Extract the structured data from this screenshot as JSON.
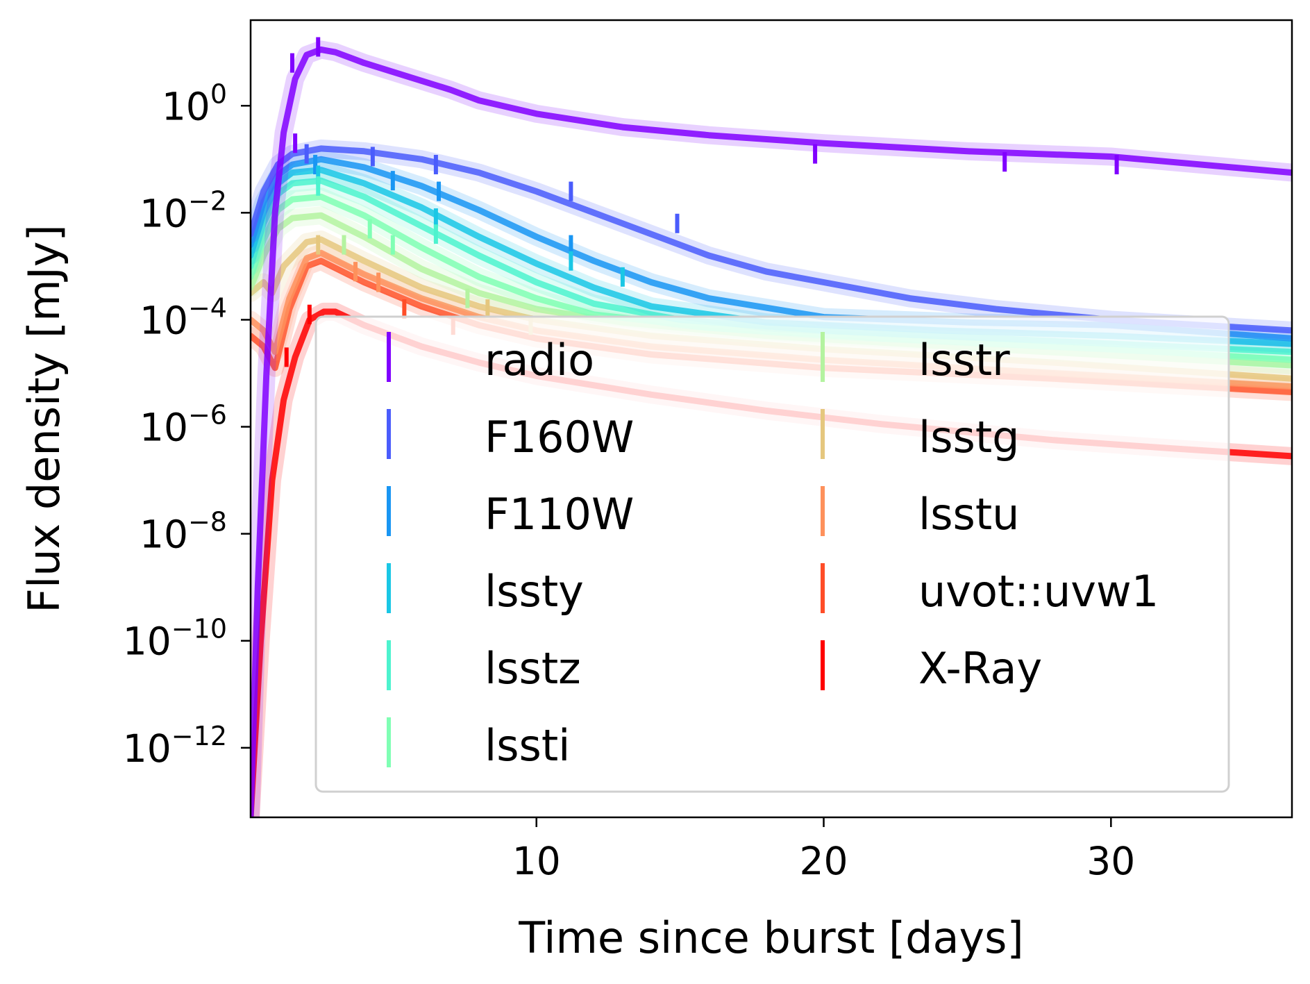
{
  "chart_data": {
    "type": "line",
    "xlabel": "Time since burst [days]",
    "ylabel": "Flux density [mJy]",
    "xlim": [
      0.05,
      36.3
    ],
    "ylim_log10": [
      -13.3,
      1.6
    ],
    "yscale": "log",
    "x_ticks": [
      10,
      20,
      30
    ],
    "x_tick_labels": [
      "10",
      "20",
      "30"
    ],
    "y_ticks_log10": [
      0,
      -2,
      -4,
      -6,
      -8,
      -10,
      -12
    ],
    "y_tick_labels": [
      {
        "base": "10",
        "exp": "0"
      },
      {
        "base": "10",
        "exp": "−2"
      },
      {
        "base": "10",
        "exp": "−4"
      },
      {
        "base": "10",
        "exp": "−6"
      },
      {
        "base": "10",
        "exp": "−8"
      },
      {
        "base": "10",
        "exp": "−10"
      },
      {
        "base": "10",
        "exp": "−12"
      }
    ],
    "legend": {
      "placement": "lower-right",
      "columns": 2
    },
    "series": [
      {
        "name": "radio",
        "color": "#8000ff",
        "model": [
          [
            0.05,
            -13.3
          ],
          [
            0.3,
            -9
          ],
          [
            0.6,
            -5
          ],
          [
            0.9,
            -2
          ],
          [
            1.2,
            -0.5
          ],
          [
            1.6,
            0.5
          ],
          [
            2.0,
            0.95
          ],
          [
            2.5,
            1.05
          ],
          [
            3,
            1.0
          ],
          [
            4,
            0.8
          ],
          [
            5.5,
            0.55
          ],
          [
            7,
            0.3
          ],
          [
            8,
            0.1
          ],
          [
            10,
            -0.15
          ],
          [
            13,
            -0.4
          ],
          [
            16,
            -0.55
          ],
          [
            20,
            -0.7
          ],
          [
            25,
            -0.85
          ],
          [
            30,
            -0.95
          ],
          [
            36.3,
            -1.25
          ]
        ],
        "points": [
          [
            1.5,
            0.8
          ],
          [
            2.4,
            1.1
          ],
          [
            1.6,
            -0.7
          ],
          [
            19.7,
            -0.9
          ],
          [
            26.3,
            -1.05
          ],
          [
            30.2,
            -1.1
          ]
        ]
      },
      {
        "name": "F160W",
        "color": "#4a5cfc",
        "model": [
          [
            0.05,
            -2.4
          ],
          [
            0.5,
            -1.6
          ],
          [
            1,
            -1.1
          ],
          [
            1.5,
            -0.9
          ],
          [
            2.5,
            -0.8
          ],
          [
            4,
            -0.85
          ],
          [
            6,
            -1.0
          ],
          [
            8,
            -1.25
          ],
          [
            10,
            -1.6
          ],
          [
            12,
            -2.0
          ],
          [
            14,
            -2.4
          ],
          [
            16,
            -2.8
          ],
          [
            18,
            -3.1
          ],
          [
            20,
            -3.3
          ],
          [
            23,
            -3.6
          ],
          [
            26,
            -3.8
          ],
          [
            30,
            -4.0
          ],
          [
            36.3,
            -4.2
          ]
        ],
        "points": [
          [
            2.0,
            -0.9
          ],
          [
            4.3,
            -0.95
          ],
          [
            6.5,
            -1.1
          ],
          [
            11.2,
            -1.6
          ],
          [
            14.9,
            -2.2
          ]
        ]
      },
      {
        "name": "F110W",
        "color": "#1996f3",
        "model": [
          [
            0.05,
            -2.6
          ],
          [
            0.5,
            -1.8
          ],
          [
            1,
            -1.3
          ],
          [
            1.5,
            -1.1
          ],
          [
            2.5,
            -1.0
          ],
          [
            4,
            -1.15
          ],
          [
            6,
            -1.5
          ],
          [
            8,
            -1.95
          ],
          [
            10,
            -2.45
          ],
          [
            12,
            -2.9
          ],
          [
            14,
            -3.3
          ],
          [
            16,
            -3.6
          ],
          [
            20,
            -3.95
          ],
          [
            25,
            -4.05
          ],
          [
            30,
            -4.1
          ],
          [
            36.3,
            -4.35
          ]
        ],
        "points": [
          [
            2.3,
            -1.1
          ],
          [
            5,
            -1.4
          ],
          [
            6.6,
            -1.6
          ],
          [
            11.2,
            -2.6
          ]
        ]
      },
      {
        "name": "lssty",
        "color": "#1ac7e5",
        "model": [
          [
            0.05,
            -2.8
          ],
          [
            0.5,
            -2.0
          ],
          [
            1,
            -1.45
          ],
          [
            1.5,
            -1.25
          ],
          [
            2.5,
            -1.2
          ],
          [
            4,
            -1.45
          ],
          [
            6,
            -1.9
          ],
          [
            8,
            -2.45
          ],
          [
            10,
            -2.95
          ],
          [
            12,
            -3.4
          ],
          [
            14,
            -3.75
          ],
          [
            18,
            -4.05
          ],
          [
            24,
            -4.2
          ],
          [
            30,
            -4.3
          ],
          [
            36.3,
            -4.45
          ]
        ],
        "points": [
          [
            2.4,
            -1.3
          ],
          [
            6.5,
            -2.1
          ],
          [
            11.2,
            -2.9
          ],
          [
            13.0,
            -3.2
          ]
        ]
      },
      {
        "name": "lsstz",
        "color": "#4df3ce",
        "model": [
          [
            0.05,
            -3.0
          ],
          [
            0.5,
            -2.2
          ],
          [
            1,
            -1.65
          ],
          [
            1.5,
            -1.45
          ],
          [
            2.5,
            -1.4
          ],
          [
            4,
            -1.7
          ],
          [
            6,
            -2.25
          ],
          [
            8,
            -2.8
          ],
          [
            10,
            -3.3
          ],
          [
            12,
            -3.7
          ],
          [
            15,
            -4.0
          ],
          [
            20,
            -4.2
          ],
          [
            28,
            -4.4
          ],
          [
            36.3,
            -4.6
          ]
        ],
        "points": [
          [
            2.4,
            -1.5
          ],
          [
            6.5,
            -2.4
          ]
        ]
      },
      {
        "name": "lssti",
        "color": "#80ffb4",
        "model": [
          [
            0.05,
            -3.2
          ],
          [
            0.5,
            -2.5
          ],
          [
            1,
            -1.95
          ],
          [
            1.5,
            -1.75
          ],
          [
            2.5,
            -1.7
          ],
          [
            4,
            -2.05
          ],
          [
            6,
            -2.65
          ],
          [
            8,
            -3.2
          ],
          [
            10,
            -3.6
          ],
          [
            12,
            -3.9
          ],
          [
            16,
            -4.15
          ],
          [
            22,
            -4.35
          ],
          [
            30,
            -4.55
          ],
          [
            36.3,
            -4.75
          ]
        ],
        "points": [
          [
            4.2,
            -2.3
          ],
          [
            5,
            -2.6
          ]
        ]
      },
      {
        "name": "lsstr",
        "color": "#b4f3a0",
        "model": [
          [
            0.05,
            -3.4
          ],
          [
            0.5,
            -2.8
          ],
          [
            1,
            -2.3
          ],
          [
            1.5,
            -2.1
          ],
          [
            2.5,
            -2.05
          ],
          [
            4,
            -2.45
          ],
          [
            6,
            -3.05
          ],
          [
            8,
            -3.5
          ],
          [
            10,
            -3.8
          ],
          [
            13,
            -4.05
          ],
          [
            18,
            -4.3
          ],
          [
            26,
            -4.55
          ],
          [
            36.3,
            -4.85
          ]
        ],
        "points": [
          [
            3.3,
            -2.6
          ],
          [
            7.6,
            -3.6
          ]
        ]
      },
      {
        "name": "lsstg",
        "color": "#e5c77e",
        "model": [
          [
            0.05,
            -3.5
          ],
          [
            0.5,
            -3.3
          ],
          [
            0.8,
            -3.5
          ],
          [
            1.2,
            -3.0
          ],
          [
            2,
            -2.55
          ],
          [
            2.5,
            -2.5
          ],
          [
            4,
            -2.9
          ],
          [
            6,
            -3.4
          ],
          [
            8,
            -3.75
          ],
          [
            10,
            -4.0
          ],
          [
            14,
            -4.3
          ],
          [
            20,
            -4.55
          ],
          [
            28,
            -4.8
          ],
          [
            36.3,
            -5.1
          ]
        ],
        "points": [
          [
            2.4,
            -2.6
          ],
          [
            8.3,
            -3.8
          ],
          [
            9.8,
            -4.1
          ]
        ]
      },
      {
        "name": "lsstu",
        "color": "#fe915c",
        "model": [
          [
            0.05,
            -4.0
          ],
          [
            0.5,
            -4.2
          ],
          [
            0.9,
            -4.6
          ],
          [
            1.4,
            -3.6
          ],
          [
            2,
            -2.85
          ],
          [
            2.5,
            -2.75
          ],
          [
            4,
            -3.15
          ],
          [
            6,
            -3.6
          ],
          [
            8,
            -3.95
          ],
          [
            10,
            -4.2
          ],
          [
            14,
            -4.5
          ],
          [
            20,
            -4.75
          ],
          [
            28,
            -5.0
          ],
          [
            36.3,
            -5.25
          ]
        ],
        "points": [
          [
            3.7,
            -3.1
          ],
          [
            4.5,
            -3.3
          ]
        ]
      },
      {
        "name": "uvot::uvw1",
        "color": "#ff4d28",
        "model": [
          [
            0.05,
            -4.3
          ],
          [
            0.5,
            -4.5
          ],
          [
            0.9,
            -4.9
          ],
          [
            1.4,
            -3.8
          ],
          [
            2,
            -3.0
          ],
          [
            2.5,
            -2.9
          ],
          [
            4,
            -3.3
          ],
          [
            6,
            -3.75
          ],
          [
            8,
            -4.1
          ],
          [
            10,
            -4.35
          ],
          [
            14,
            -4.65
          ],
          [
            20,
            -4.9
          ],
          [
            28,
            -5.1
          ],
          [
            36.3,
            -5.35
          ]
        ],
        "points": [
          [
            5.4,
            -3.8
          ],
          [
            7.1,
            -4.1
          ]
        ]
      },
      {
        "name": "X-Ray",
        "color": "#ff0000",
        "model": [
          [
            0.05,
            -13.3
          ],
          [
            0.4,
            -10
          ],
          [
            0.8,
            -7
          ],
          [
            1.2,
            -5.5
          ],
          [
            1.6,
            -4.7
          ],
          [
            2.1,
            -4.0
          ],
          [
            2.6,
            -3.85
          ],
          [
            3,
            -3.85
          ],
          [
            4,
            -4.1
          ],
          [
            6,
            -4.5
          ],
          [
            8,
            -4.8
          ],
          [
            10,
            -5.05
          ],
          [
            14,
            -5.4
          ],
          [
            18,
            -5.7
          ],
          [
            22,
            -5.95
          ],
          [
            28,
            -6.25
          ],
          [
            32,
            -6.4
          ],
          [
            36.3,
            -6.55
          ]
        ],
        "points": [
          [
            1.3,
            -4.7
          ],
          [
            2.1,
            -3.9
          ]
        ]
      }
    ]
  }
}
